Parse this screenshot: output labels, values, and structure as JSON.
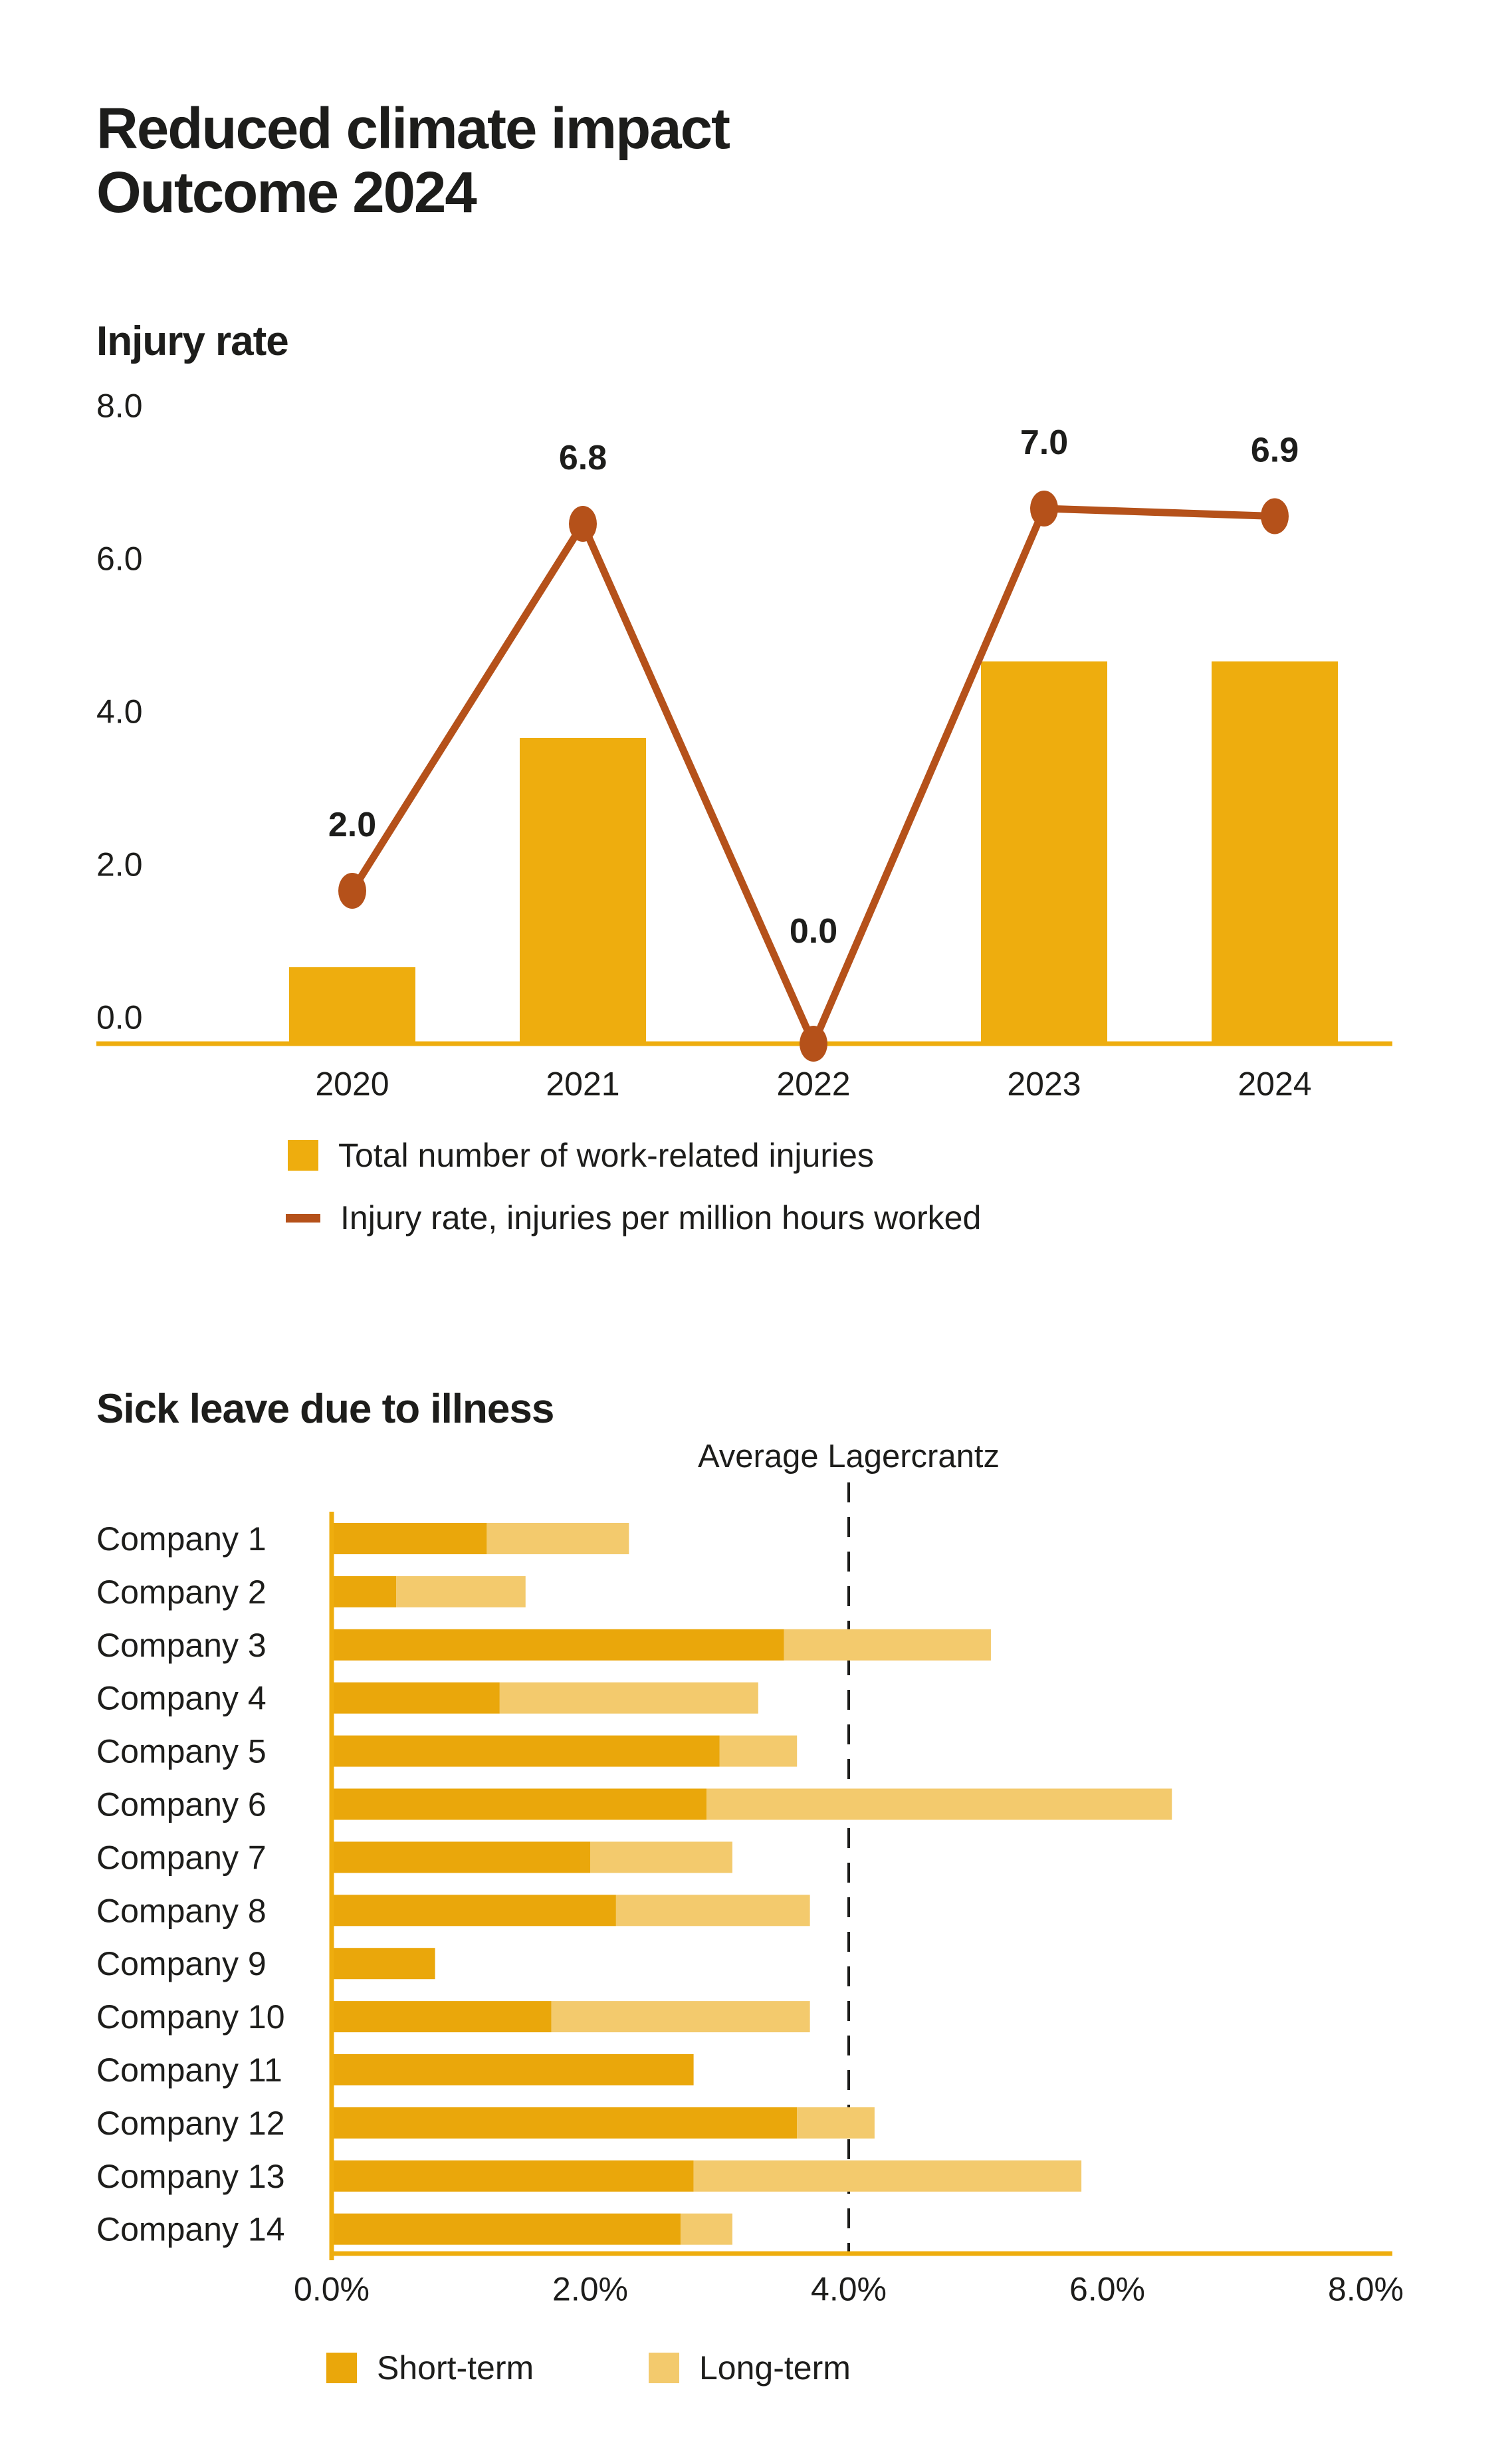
{
  "page": {
    "title_line1": "Reduced climate impact",
    "title_line2": "Outcome 2024"
  },
  "colors": {
    "amber": "#eead0e",
    "short_term": "#eaa70b",
    "long_term": "#f3ca6d",
    "rust": "#b5511a",
    "text": "#1d1d1b"
  },
  "chart_data": [
    {
      "type": "bar+line",
      "title": "Injury rate",
      "categories": [
        "2020",
        "2021",
        "2022",
        "2023",
        "2024"
      ],
      "series": [
        {
          "name": "Total number of work-related injuries",
          "type": "bar",
          "color": "#eead0e",
          "values": [
            1,
            4,
            0,
            5,
            5
          ]
        },
        {
          "name": "Injury rate, injuries per million hours worked",
          "type": "line",
          "color": "#b5511a",
          "values": [
            2.0,
            6.8,
            0.0,
            7.0,
            6.9
          ],
          "labels": [
            "2.0",
            "6.8",
            "0.0",
            "7.0",
            "6.9"
          ]
        }
      ],
      "yticks": [
        "8.0",
        "6.0",
        "4.0",
        "2.0",
        "0.0"
      ],
      "ytick_values": [
        8,
        6,
        4,
        2,
        0
      ],
      "ylim": [
        0,
        8
      ],
      "grid": false,
      "legend_position": "bottom-left"
    },
    {
      "type": "stacked-bar-horizontal",
      "title": "Sick leave due to illness",
      "annotation": {
        "label": "Average Lagercrantz",
        "value": 4.0
      },
      "categories": [
        "Company 1",
        "Company 2",
        "Company 3",
        "Company 4",
        "Company 5",
        "Company 6",
        "Company 7",
        "Company 8",
        "Company 9",
        "Company 10",
        "Company 11",
        "Company 12",
        "Company 13",
        "Company 14"
      ],
      "series": [
        {
          "name": "Short-term",
          "color": "#eaa70b",
          "values": [
            1.2,
            0.5,
            3.5,
            1.3,
            3.0,
            2.9,
            2.0,
            2.2,
            0.8,
            1.7,
            2.8,
            3.6,
            2.8,
            2.7
          ]
        },
        {
          "name": "Long-term",
          "color": "#f3ca6d",
          "values": [
            1.1,
            1.0,
            1.6,
            2.0,
            0.6,
            3.6,
            1.1,
            1.5,
            0.0,
            2.0,
            0.0,
            0.6,
            3.0,
            0.4
          ]
        }
      ],
      "xticks": [
        "0.0%",
        "2.0%",
        "4.0%",
        "6.0%",
        "8.0%"
      ],
      "xtick_values": [
        0,
        2,
        4,
        6,
        8
      ],
      "xlim": [
        0,
        8
      ],
      "grid": false,
      "legend_position": "bottom-left"
    }
  ]
}
